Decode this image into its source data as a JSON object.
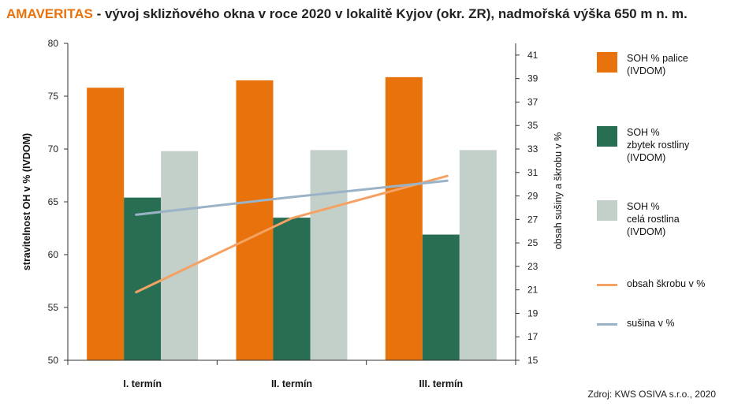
{
  "title": {
    "brand": "AMAVERITAS",
    "rest": " - vývoj sklizňového okna v roce 2020 v lokalitě Kyjov (okr. ZR), nadmořská výška 650 m n. m."
  },
  "source": "Zdroj: KWS OSIVA s.r.o., 2020",
  "chart_data": {
    "type": "bar",
    "categories": [
      "I. termín",
      "II. termín",
      "III. termín"
    ],
    "ylabel": "stravitelnost OH v %  (IVDOM)",
    "y2label": "obsah sušiny a škrobu v %",
    "ylim": [
      50,
      80
    ],
    "yticks": [
      50,
      55,
      60,
      65,
      70,
      75,
      80
    ],
    "y2lim": [
      15,
      42
    ],
    "y2ticks": [
      15,
      17,
      19,
      21,
      23,
      25,
      27,
      29,
      31,
      33,
      35,
      37,
      39,
      41
    ],
    "grid": false,
    "legend_placement": "right",
    "bar_series": [
      {
        "name": "SOH % palice\n(IVDOM)",
        "color": "#e8730c",
        "values": [
          75.8,
          76.5,
          76.8
        ]
      },
      {
        "name": "SOH %\nzbytek rostliny\n(IVDOM)",
        "color": "#276e52",
        "values": [
          65.4,
          63.5,
          61.9
        ]
      },
      {
        "name": "SOH %\ncelá rostlina\n(IVDOM)",
        "color": "#c3cfc9",
        "values": [
          69.8,
          69.9,
          69.9
        ]
      }
    ],
    "line_series": [
      {
        "name": "obsah škrobu v %",
        "color": "#f4a264",
        "axis": "y2",
        "values": [
          20.8,
          27.1,
          30.7
        ]
      },
      {
        "name": "sušina v %",
        "color": "#9bb3c6",
        "axis": "y2",
        "values": [
          27.4,
          28.9,
          30.3
        ]
      }
    ]
  }
}
